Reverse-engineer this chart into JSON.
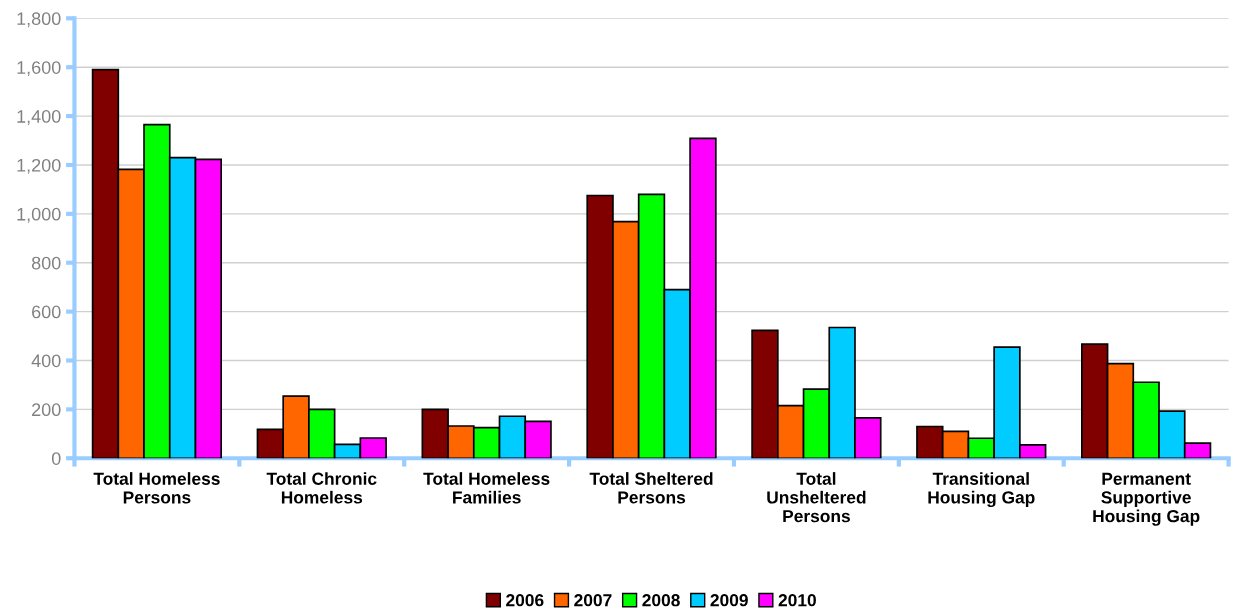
{
  "chart_data": {
    "type": "bar",
    "categories": [
      "Total Homeless\nPersons",
      "Total Chronic\nHomeless",
      "Total Homeless\nFamilies",
      "Total Sheltered\nPersons",
      "Total\nUnsheltered\nPersons",
      "Transitional\nHousing Gap",
      "Permanent\nSupportive\nHousing Gap"
    ],
    "series": [
      {
        "name": "2006",
        "color": "#800000",
        "values": [
          1590,
          118,
          200,
          1075,
          523,
          130,
          467
        ]
      },
      {
        "name": "2007",
        "color": "#ff6600",
        "values": [
          1182,
          254,
          132,
          968,
          215,
          110,
          387
        ]
      },
      {
        "name": "2008",
        "color": "#00ff00",
        "values": [
          1365,
          200,
          125,
          1080,
          283,
          82,
          311
        ]
      },
      {
        "name": "2009",
        "color": "#00ccff",
        "values": [
          1230,
          57,
          172,
          690,
          535,
          455,
          193
        ]
      },
      {
        "name": "2010",
        "color": "#ff00ff",
        "values": [
          1223,
          83,
          151,
          1309,
          165,
          55,
          62
        ]
      }
    ],
    "ylim": [
      0,
      1800
    ],
    "yticks": [
      {
        "value": 0,
        "label": "0"
      },
      {
        "value": 200,
        "label": "200"
      },
      {
        "value": 400,
        "label": "400"
      },
      {
        "value": 600,
        "label": "600"
      },
      {
        "value": 800,
        "label": "800"
      },
      {
        "value": 1000,
        "label": "1,000"
      },
      {
        "value": 1200,
        "label": "1,200"
      },
      {
        "value": 1400,
        "label": "1,400"
      },
      {
        "value": 1600,
        "label": "1,600"
      },
      {
        "value": 1800,
        "label": "1,800"
      }
    ],
    "grid": "y",
    "legend": "bottom"
  }
}
